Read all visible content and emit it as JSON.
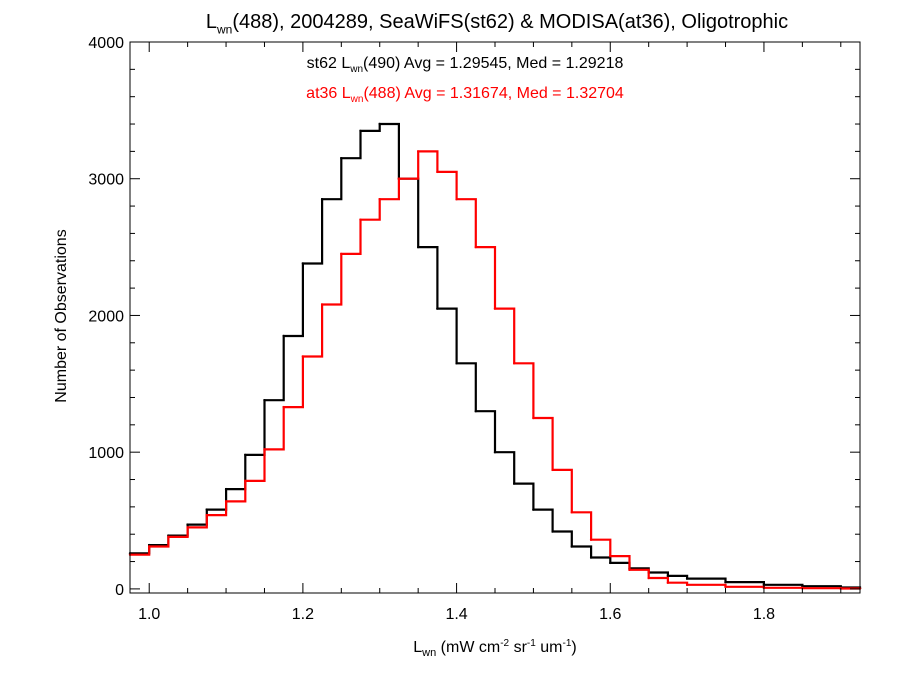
{
  "chart_data": {
    "type": "line",
    "title_parts": [
      "L",
      "wn",
      "(488), 2004289, SeaWiFS(st62) & MODISA(at36), Oligotrophic"
    ],
    "xlabel_parts": [
      "L",
      "wn",
      " (mW cm",
      "-2",
      " sr",
      "-1",
      " um",
      "-1",
      ")"
    ],
    "ylabel": "Number of Observations",
    "xlim": [
      0.975,
      1.925
    ],
    "ylim": [
      -30,
      4000
    ],
    "xticks": [
      1.0,
      1.2,
      1.4,
      1.6,
      1.8
    ],
    "xtick_labels": [
      "1.0",
      "1.2",
      "1.4",
      "1.6",
      "1.8"
    ],
    "yticks": [
      0,
      1000,
      2000,
      3000,
      4000
    ],
    "ytick_labels": [
      "0",
      "1000",
      "2000",
      "3000",
      "4000"
    ],
    "grid": false,
    "colors": {
      "st62": "#000000",
      "at36": "#ff0000"
    },
    "annotations": [
      {
        "series": "st62",
        "parts": [
          "st62 L",
          "wn",
          "(490) Avg = 1.29545, Med = 1.29218"
        ],
        "color": "#000000"
      },
      {
        "series": "at36",
        "parts": [
          "at36 L",
          "wn",
          "(488) Avg = 1.31674, Med = 1.32704"
        ],
        "color": "#ff0000"
      }
    ],
    "series": [
      {
        "name": "st62",
        "color": "#000000",
        "x": [
          0.975,
          1.0,
          1.025,
          1.05,
          1.075,
          1.1,
          1.125,
          1.15,
          1.175,
          1.2,
          1.225,
          1.25,
          1.275,
          1.3,
          1.325,
          1.35,
          1.375,
          1.4,
          1.425,
          1.45,
          1.475,
          1.5,
          1.525,
          1.55,
          1.575,
          1.6,
          1.625,
          1.65,
          1.675,
          1.7,
          1.75,
          1.8,
          1.85,
          1.9,
          1.925
        ],
        "values": [
          260,
          320,
          390,
          470,
          580,
          730,
          980,
          1380,
          1850,
          2380,
          2850,
          3150,
          3350,
          3400,
          3000,
          2500,
          2050,
          1650,
          1300,
          1000,
          770,
          580,
          420,
          310,
          230,
          190,
          150,
          120,
          95,
          75,
          50,
          30,
          20,
          10,
          5
        ]
      },
      {
        "name": "at36",
        "color": "#ff0000",
        "x": [
          0.975,
          1.0,
          1.025,
          1.05,
          1.075,
          1.1,
          1.125,
          1.15,
          1.175,
          1.2,
          1.225,
          1.25,
          1.275,
          1.3,
          1.325,
          1.35,
          1.375,
          1.4,
          1.425,
          1.45,
          1.475,
          1.5,
          1.525,
          1.55,
          1.575,
          1.6,
          1.625,
          1.65,
          1.675,
          1.7,
          1.75,
          1.8,
          1.85,
          1.9,
          1.925
        ],
        "values": [
          250,
          310,
          380,
          450,
          540,
          640,
          790,
          1020,
          1330,
          1700,
          2080,
          2450,
          2700,
          2850,
          3000,
          3200,
          3050,
          2850,
          2500,
          2050,
          1650,
          1250,
          870,
          560,
          360,
          240,
          140,
          80,
          45,
          30,
          15,
          8,
          5,
          3,
          2
        ]
      }
    ]
  }
}
